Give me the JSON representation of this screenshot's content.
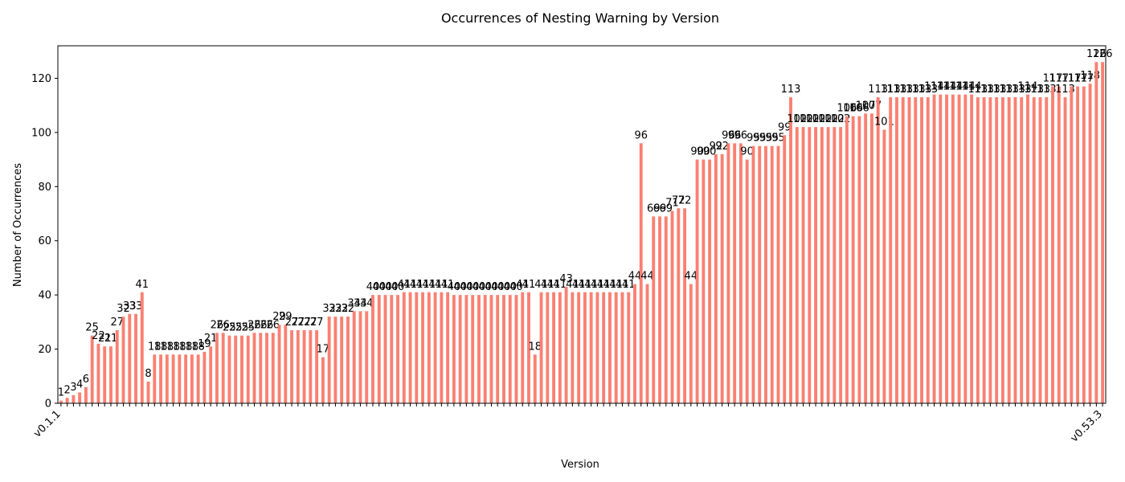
{
  "chart_data": {
    "type": "bar",
    "title": "Occurrences of Nesting Warning by Version",
    "x_label": "Version",
    "y_label": "Number of Occurrences",
    "categories": [
      "v0.1.1",
      null,
      null,
      null,
      null,
      null,
      null,
      null,
      null,
      null,
      null,
      null,
      null,
      null,
      null,
      null,
      null,
      null,
      null,
      null,
      null,
      null,
      null,
      null,
      null,
      null,
      null,
      null,
      null,
      null,
      null,
      null,
      null,
      null,
      null,
      null,
      null,
      null,
      null,
      null,
      null,
      null,
      null,
      null,
      null,
      null,
      null,
      null,
      null,
      null,
      null,
      null,
      null,
      null,
      null,
      null,
      null,
      null,
      null,
      null,
      null,
      null,
      null,
      null,
      null,
      null,
      null,
      null,
      null,
      null,
      null,
      null,
      null,
      null,
      null,
      null,
      null,
      null,
      null,
      null,
      null,
      null,
      null,
      null,
      null,
      null,
      null,
      null,
      null,
      null,
      null,
      null,
      null,
      null,
      null,
      null,
      null,
      null,
      null,
      null,
      null,
      null,
      null,
      null,
      null,
      null,
      null,
      null,
      null,
      null,
      null,
      null,
      null,
      null,
      null,
      null,
      null,
      null,
      null,
      null,
      null,
      null,
      null,
      null,
      null,
      null,
      null,
      null,
      null,
      null,
      null,
      null,
      null,
      null,
      null,
      null,
      null,
      null,
      null,
      null,
      null,
      null,
      null,
      null,
      null,
      null,
      null,
      null,
      null,
      null,
      null,
      null,
      null,
      null,
      null,
      null,
      null,
      null,
      null,
      null,
      null,
      null,
      null,
      null,
      null,
      null,
      null,
      "v0.53.3"
    ],
    "values": [
      1,
      2,
      3,
      4,
      6,
      25,
      22,
      21,
      21,
      27,
      32,
      33,
      33,
      41,
      8,
      18,
      18,
      18,
      18,
      18,
      18,
      18,
      18,
      19,
      21,
      26,
      26,
      25,
      25,
      25,
      25,
      26,
      26,
      26,
      26,
      29,
      29,
      27,
      27,
      27,
      27,
      27,
      17,
      32,
      32,
      32,
      32,
      34,
      34,
      34,
      40,
      40,
      40,
      40,
      40,
      41,
      41,
      41,
      41,
      41,
      41,
      41,
      41,
      40,
      40,
      40,
      40,
      40,
      40,
      40,
      40,
      40,
      40,
      40,
      41,
      41,
      18,
      41,
      41,
      41,
      41,
      43,
      41,
      41,
      41,
      41,
      41,
      41,
      41,
      41,
      41,
      41,
      44,
      96,
      44,
      69,
      69,
      69,
      71,
      72,
      72,
      44,
      90,
      90,
      90,
      92,
      92,
      96,
      96,
      96,
      90,
      95,
      95,
      95,
      95,
      95,
      99,
      113,
      102,
      102,
      102,
      102,
      102,
      102,
      102,
      102,
      106,
      106,
      106,
      107,
      107,
      113,
      101,
      113,
      113,
      113,
      113,
      113,
      113,
      113,
      114,
      114,
      114,
      114,
      114,
      114,
      114,
      113,
      113,
      113,
      113,
      113,
      113,
      113,
      113,
      114,
      113,
      113,
      113,
      117,
      117,
      113,
      117,
      117,
      117,
      118,
      126,
      126
    ],
    "color": "#fa8072",
    "ylim": [
      0,
      132
    ],
    "yticks": [
      0,
      20,
      40,
      60,
      80,
      100,
      120
    ],
    "grid": false
  }
}
